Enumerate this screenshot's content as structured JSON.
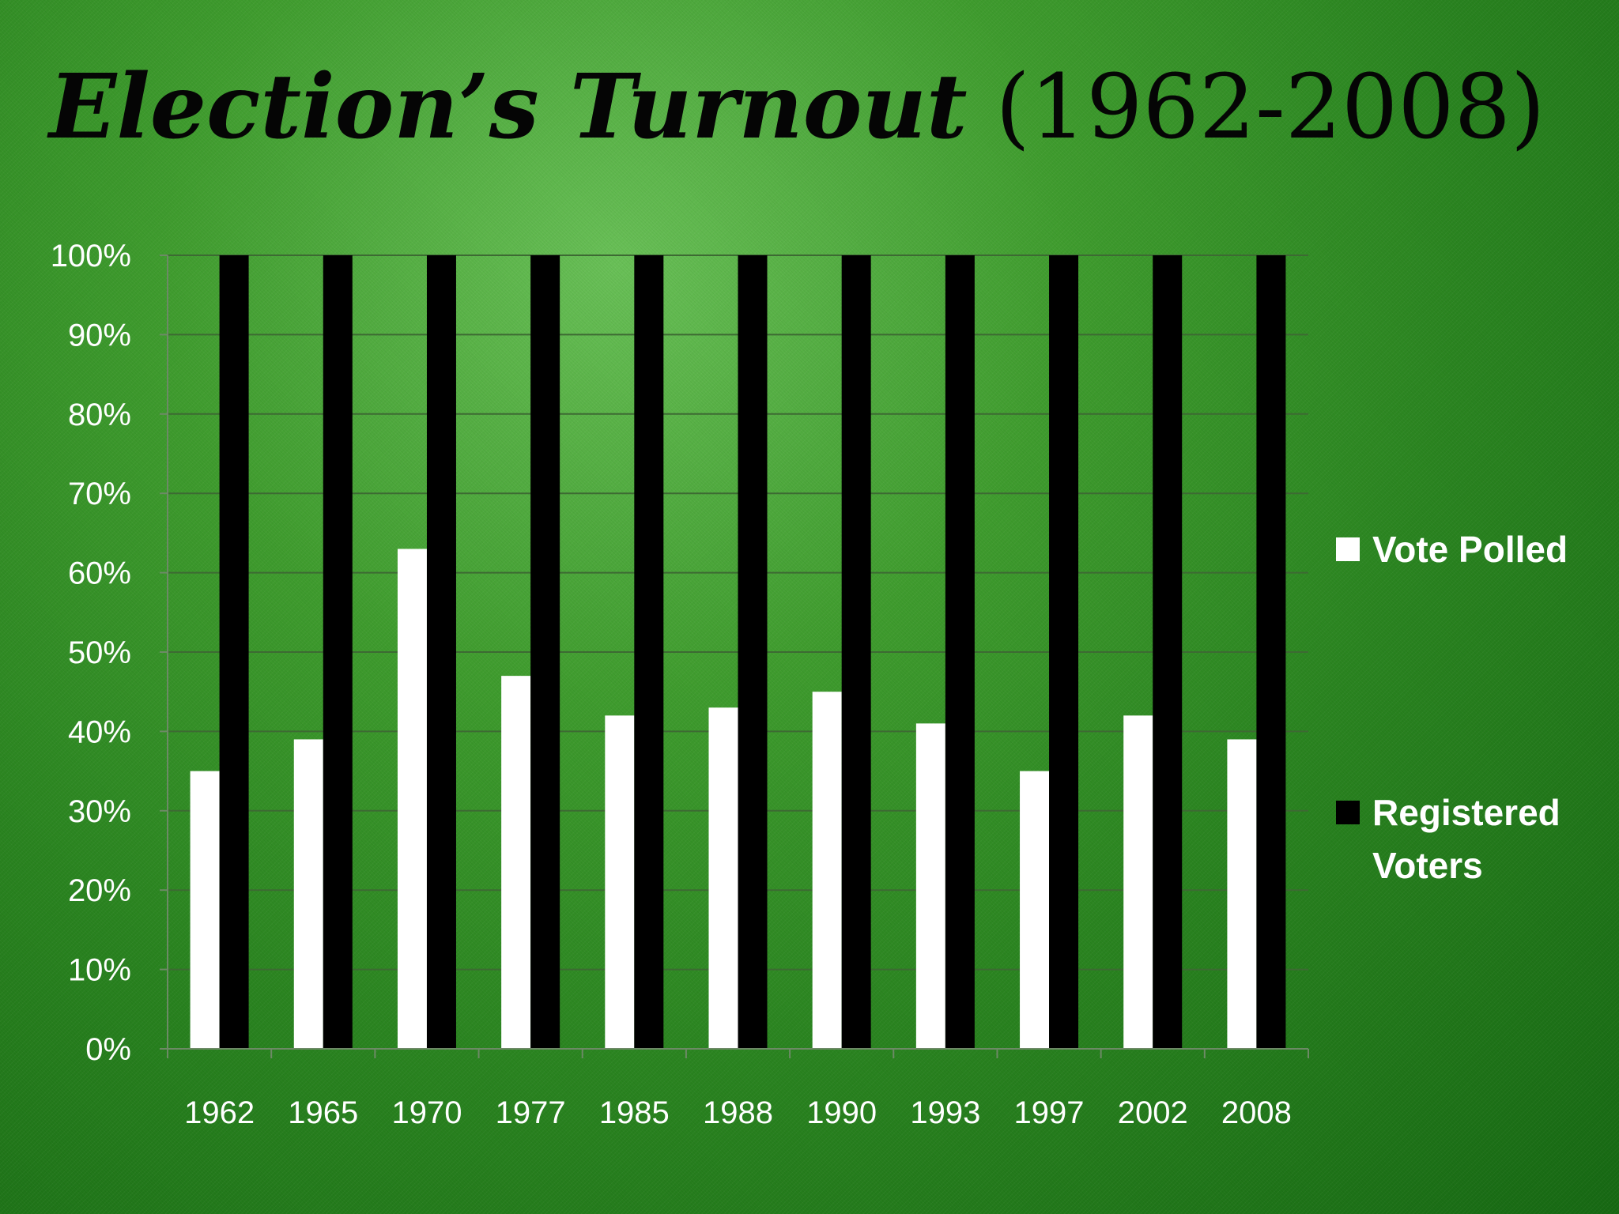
{
  "title": {
    "main": "Election’s Turnout",
    "rest": " (1962-2008)"
  },
  "chart_data": {
    "type": "bar",
    "categories": [
      "1962",
      "1965",
      "1970",
      "1977",
      "1985",
      "1988",
      "1990",
      "1993",
      "1997",
      "2002",
      "2008"
    ],
    "series": [
      {
        "name": "Vote Polled",
        "color": "#ffffff",
        "values": [
          35,
          39,
          63,
          47,
          42,
          43,
          45,
          41,
          35,
          42,
          39
        ]
      },
      {
        "name": "Registered Voters",
        "color": "#000000",
        "values": [
          100,
          100,
          100,
          100,
          100,
          100,
          100,
          100,
          100,
          100,
          100
        ]
      }
    ],
    "ylim": [
      0,
      100
    ],
    "yticks": [
      "0%",
      "10%",
      "20%",
      "30%",
      "40%",
      "50%",
      "60%",
      "70%",
      "80%",
      "90%",
      "100%"
    ],
    "grid": true,
    "legend_position": "right"
  }
}
